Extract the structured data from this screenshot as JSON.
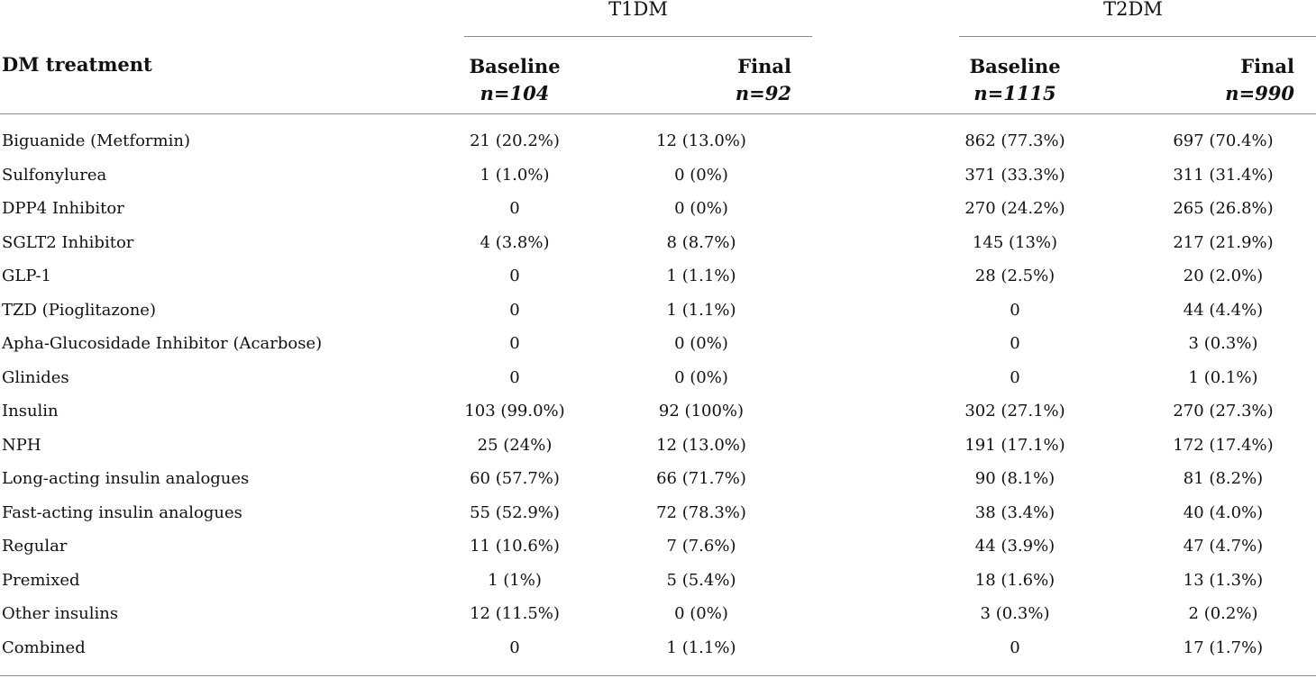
{
  "table": {
    "groups": [
      {
        "label": "T1DM"
      },
      {
        "label": "T2DM"
      }
    ],
    "row_header_label": "DM treatment",
    "columns": [
      {
        "label": "Baseline",
        "n": "n=104"
      },
      {
        "label": "Final",
        "n": "n=92"
      },
      {
        "label": "Baseline",
        "n": "n=1115"
      },
      {
        "label": "Final",
        "n": "n=990"
      }
    ],
    "rows": [
      {
        "label": "Biguanide (Metformin)",
        "values": [
          "21 (20.2%)",
          "12 (13.0%)",
          "862 (77.3%)",
          "697 (70.4%)"
        ]
      },
      {
        "label": "Sulfonylurea",
        "values": [
          "1 (1.0%)",
          "0 (0%)",
          "371 (33.3%)",
          "311 (31.4%)"
        ]
      },
      {
        "label": "DPP4 Inhibitor",
        "values": [
          "0",
          "0 (0%)",
          "270 (24.2%)",
          "265 (26.8%)"
        ]
      },
      {
        "label": "SGLT2 Inhibitor",
        "values": [
          "4 (3.8%)",
          "8 (8.7%)",
          "145 (13%)",
          "217 (21.9%)"
        ]
      },
      {
        "label": "GLP-1",
        "values": [
          "0",
          "1 (1.1%)",
          "28 (2.5%)",
          "20 (2.0%)"
        ]
      },
      {
        "label": "TZD (Pioglitazone)",
        "values": [
          "0",
          "1 (1.1%)",
          "0",
          "44 (4.4%)"
        ]
      },
      {
        "label": "Apha-Glucosidade Inhibitor (Acarbose)",
        "values": [
          "0",
          "0 (0%)",
          "0",
          "3 (0.3%)"
        ]
      },
      {
        "label": "Glinides",
        "values": [
          "0",
          "0 (0%)",
          "0",
          "1 (0.1%)"
        ]
      },
      {
        "label": "Insulin",
        "values": [
          "103 (99.0%)",
          "92 (100%)",
          "302 (27.1%)",
          "270 (27.3%)"
        ]
      },
      {
        "label": "NPH",
        "values": [
          "25 (24%)",
          "12 (13.0%)",
          "191 (17.1%)",
          "172 (17.4%)"
        ]
      },
      {
        "label": "Long-acting insulin analogues",
        "values": [
          "60 (57.7%)",
          "66 (71.7%)",
          "90 (8.1%)",
          "81 (8.2%)"
        ]
      },
      {
        "label": "Fast-acting insulin analogues",
        "values": [
          "55 (52.9%)",
          "72 (78.3%)",
          "38 (3.4%)",
          "40 (4.0%)"
        ]
      },
      {
        "label": "Regular",
        "values": [
          "11 (10.6%)",
          "7 (7.6%)",
          "44 (3.9%)",
          "47 (4.7%)"
        ]
      },
      {
        "label": "Premixed",
        "values": [
          "1 (1%)",
          "5 (5.4%)",
          "18 (1.6%)",
          "13 (1.3%)"
        ]
      },
      {
        "label": "Other insulins",
        "values": [
          "12 (11.5%)",
          "0 (0%)",
          "3 (0.3%)",
          "2 (0.2%)"
        ]
      },
      {
        "label": "Combined",
        "values": [
          "0",
          "1 (1.1%)",
          "0",
          "17 (1.7%)"
        ]
      }
    ]
  }
}
